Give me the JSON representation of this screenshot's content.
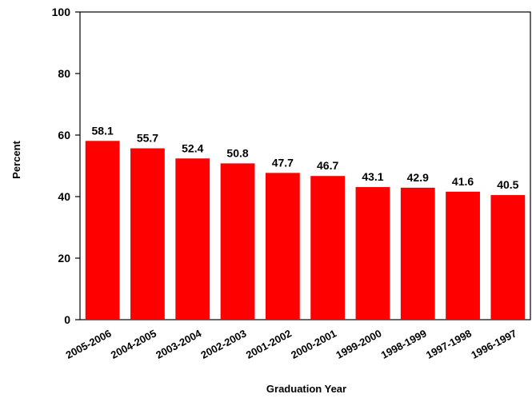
{
  "chart_data": {
    "type": "bar",
    "title": "",
    "xlabel": "Graduation Year",
    "ylabel": "Percent",
    "ylim": [
      0,
      100
    ],
    "yticks": [
      0,
      20,
      40,
      60,
      80,
      100
    ],
    "grid": false,
    "legend": "none",
    "bar_color": "#ff0000",
    "categories": [
      "2005-2006",
      "2004-2005",
      "2003-2004",
      "2002-2003",
      "2001-2002",
      "2000-2001",
      "1999-2000",
      "1998-1999",
      "1997-1998",
      "1996-1997"
    ],
    "values": [
      58.1,
      55.7,
      52.4,
      50.8,
      47.7,
      46.7,
      43.1,
      42.9,
      41.6,
      40.5
    ],
    "value_labels": [
      "58.1",
      "55.7",
      "52.4",
      "50.8",
      "47.7",
      "46.7",
      "43.1",
      "42.9",
      "41.6",
      "40.5"
    ]
  }
}
